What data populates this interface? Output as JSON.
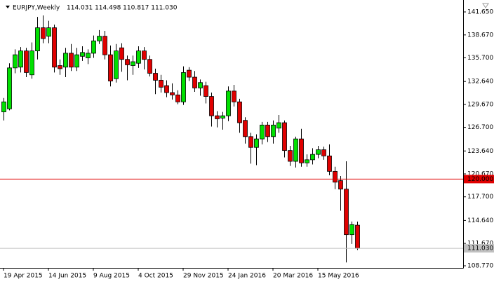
{
  "chart_data": {
    "type": "candlestick",
    "title": "EURJPY,Weekly",
    "header": "114.031 114.498 110.817 111.030",
    "categories": [
      "19 Apr 2015",
      null,
      null,
      null,
      null,
      null,
      null,
      null,
      "14 Jun 2015",
      null,
      null,
      null,
      null,
      null,
      null,
      null,
      "9 Aug 2015",
      null,
      null,
      null,
      null,
      null,
      null,
      null,
      "4 Oct 2015",
      null,
      null,
      null,
      null,
      null,
      null,
      null,
      "29 Nov 2015",
      null,
      null,
      null,
      null,
      null,
      null,
      null,
      "24 Jan 2016",
      null,
      null,
      null,
      null,
      null,
      null,
      null,
      "20 Mar 2016",
      null,
      null,
      null,
      null,
      null,
      null,
      null,
      "15 May 2016",
      null,
      null,
      null,
      null,
      null,
      null,
      null
    ],
    "open": [
      128.7,
      129.1,
      134.4,
      134.5,
      136.6,
      133.5,
      136.6,
      139.6,
      138.5,
      139.6,
      134.7,
      134.5,
      136.3,
      134.5,
      135.9,
      135.7,
      136.3,
      137.9,
      138.5,
      136.1,
      133.0,
      137.0,
      135.5,
      134.7,
      135.0,
      136.6,
      135.5,
      133.7,
      132.8,
      132.1,
      131.2,
      130.9,
      130.0,
      134.1,
      133.2,
      131.8,
      132.1,
      130.7,
      128.2,
      127.9,
      128.2,
      131.4,
      130.0,
      127.6,
      125.5,
      124.1,
      125.2,
      127.0,
      125.5,
      126.6,
      127.3,
      123.7,
      122.3,
      125.2,
      122.1,
      122.5,
      123.2,
      123.8,
      123.0,
      121.0,
      119.8,
      118.7,
      112.8,
      114.031
    ],
    "high": [
      130.5,
      135.0,
      136.8,
      137.1,
      137.0,
      137.7,
      141.0,
      141.2,
      140.5,
      140.0,
      135.5,
      137.0,
      137.5,
      137.0,
      137.2,
      136.8,
      138.6,
      139.3,
      139.2,
      137.3,
      137.5,
      137.6,
      136.0,
      136.0,
      137.2,
      137.1,
      136.0,
      134.3,
      133.5,
      132.8,
      132.4,
      131.5,
      134.6,
      134.5,
      134.0,
      132.9,
      132.6,
      131.2,
      128.8,
      128.7,
      132.0,
      132.2,
      130.4,
      128.0,
      126.0,
      125.8,
      127.4,
      127.4,
      127.6,
      128.3,
      127.6,
      124.3,
      125.5,
      126.5,
      123.2,
      124.0,
      124.3,
      124.2,
      124.5,
      121.6,
      120.4,
      122.3,
      114.5,
      114.498
    ],
    "low": [
      127.6,
      128.9,
      133.7,
      133.8,
      133.2,
      133.0,
      135.5,
      137.6,
      137.6,
      133.8,
      133.5,
      133.2,
      134.0,
      134.0,
      135.3,
      134.9,
      135.7,
      137.5,
      135.5,
      132.0,
      132.5,
      133.9,
      132.8,
      133.5,
      134.4,
      134.2,
      133.3,
      131.0,
      131.2,
      130.6,
      130.3,
      129.7,
      129.6,
      132.7,
      131.3,
      130.8,
      129.8,
      126.8,
      126.7,
      126.4,
      127.5,
      129.4,
      126.0,
      124.6,
      122.0,
      121.8,
      124.5,
      124.8,
      124.6,
      126.0,
      122.8,
      121.7,
      121.5,
      121.6,
      121.6,
      121.9,
      122.7,
      122.5,
      120.5,
      118.7,
      115.9,
      109.2,
      111.6,
      110.817
    ],
    "close": [
      130.0,
      134.4,
      136.1,
      136.6,
      133.8,
      136.6,
      139.6,
      138.2,
      139.6,
      134.5,
      134.3,
      136.3,
      134.5,
      136.1,
      136.4,
      136.3,
      137.9,
      138.5,
      136.1,
      132.7,
      136.6,
      135.5,
      134.8,
      135.2,
      136.6,
      135.5,
      133.7,
      132.8,
      131.9,
      131.2,
      130.9,
      130.0,
      133.8,
      133.2,
      131.8,
      132.5,
      130.7,
      128.2,
      127.8,
      128.2,
      131.4,
      130.0,
      127.3,
      125.5,
      124.1,
      125.2,
      127.0,
      125.5,
      127.0,
      127.3,
      123.7,
      122.3,
      125.2,
      122.1,
      122.5,
      123.2,
      123.8,
      123.0,
      121.0,
      119.6,
      118.7,
      112.8,
      114.1,
      111.03
    ],
    "up_color": "#00e000",
    "down_color": "#e00000",
    "ylim": [
      108.5,
      142.74
    ],
    "yticks": [
      {
        "value": 141.65,
        "label": "141.650"
      },
      {
        "value": 138.67,
        "label": "138.670"
      },
      {
        "value": 135.7,
        "label": "135.700"
      },
      {
        "value": 132.64,
        "label": "132.640"
      },
      {
        "value": 129.67,
        "label": "129.670"
      },
      {
        "value": 126.7,
        "label": "126.700"
      },
      {
        "value": 123.64,
        "label": "123.640"
      },
      {
        "value": 120.67,
        "label": "120.670"
      },
      {
        "value": 117.7,
        "label": "117.700"
      },
      {
        "value": 114.64,
        "label": "114.640"
      },
      {
        "value": 111.67,
        "label": "111.670"
      },
      {
        "value": 108.77,
        "label": "108.770"
      }
    ],
    "annotations": [
      {
        "value": 120,
        "label": "120.000",
        "color": "#e00000"
      },
      {
        "value": 111.03,
        "label": "111.030",
        "color": "#c0c0c0"
      }
    ]
  }
}
